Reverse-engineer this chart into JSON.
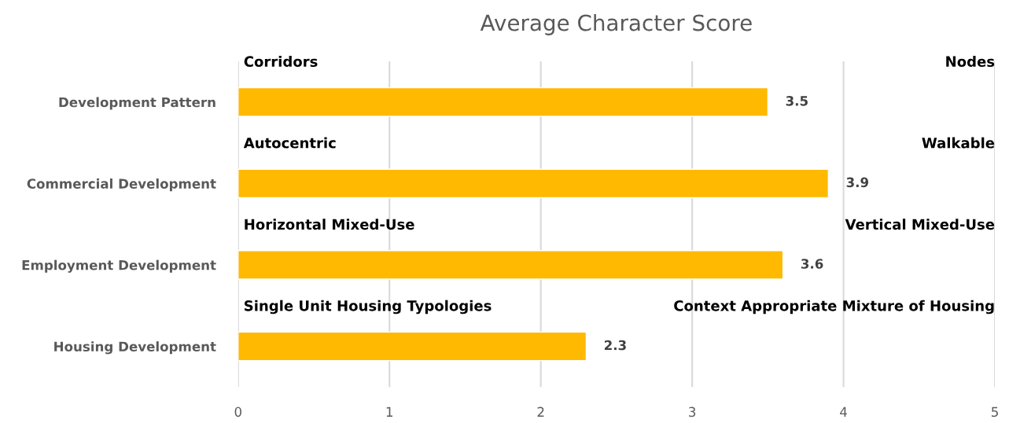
{
  "chart_data": {
    "type": "bar",
    "orientation": "horizontal",
    "title": "Average Character Score",
    "categories": [
      "Development Pattern",
      "Commercial Development",
      "Employment Development",
      "Housing Development"
    ],
    "values": [
      3.5,
      3.9,
      3.6,
      2.3
    ],
    "color": "#ffb900",
    "data_labels": true,
    "xlim": [
      0,
      5
    ],
    "xticks": [
      0,
      1,
      2,
      3,
      4,
      5
    ],
    "grid": "x",
    "legend": false,
    "annotations": [
      "Corridors",
      "Nodes",
      "Autocentric",
      "Walkable",
      "Horizontal Mixed-Use",
      "Vertical Mixed-Use",
      "Single Unit Housing Typologies",
      "Context Appropriate Mixture of Housing"
    ]
  }
}
